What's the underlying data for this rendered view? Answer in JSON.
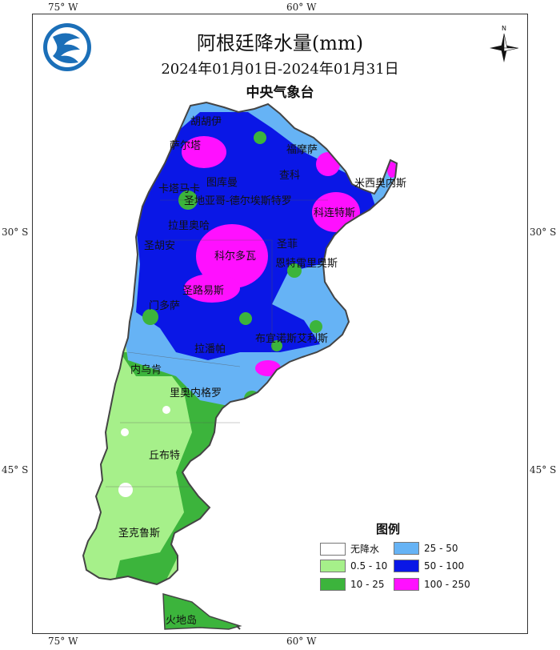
{
  "map": {
    "title": "阿根廷降水量(mm)",
    "date_range": "2024年01月01日-2024年01月31日",
    "agency": "中央气象台",
    "graticule": {
      "top_labels": [
        "75° W",
        "60° W"
      ],
      "bottom_labels": [
        "75° W",
        "60° W"
      ],
      "left_labels": [
        "30° S",
        "45° S"
      ],
      "right_labels": [
        "30° S",
        "45° S"
      ]
    },
    "places": [
      "胡胡伊",
      "萨尔塔",
      "福摩萨",
      "查科",
      "卡塔马卡",
      "图库曼",
      "米西奥内斯",
      "圣地亚哥-德尔埃斯特罗",
      "科连特斯",
      "拉里奥哈",
      "圣菲",
      "圣胡安",
      "科尔多瓦",
      "恩特雷里奥斯",
      "圣路易斯",
      "门多萨",
      "布宜诺斯艾利斯",
      "拉潘帕",
      "内乌肯",
      "里奥内格罗",
      "丘布特",
      "圣克鲁斯",
      "火地岛"
    ],
    "north_arrow_letter": "N",
    "logo_icon": "cma-logo-icon",
    "compass_icon": "north-arrow-icon"
  },
  "legend": {
    "title": "图例",
    "items": [
      {
        "label": "无降水",
        "color": "#ffffff"
      },
      {
        "label": "25 - 50",
        "color": "#66b3f5"
      },
      {
        "label": "0.5 - 10",
        "color": "#a6f08a"
      },
      {
        "label": "50 - 100",
        "color": "#0a17e6"
      },
      {
        "label": "10 - 25",
        "color": "#3cb43c"
      },
      {
        "label": "100 - 250",
        "color": "#ff10ff"
      }
    ]
  }
}
